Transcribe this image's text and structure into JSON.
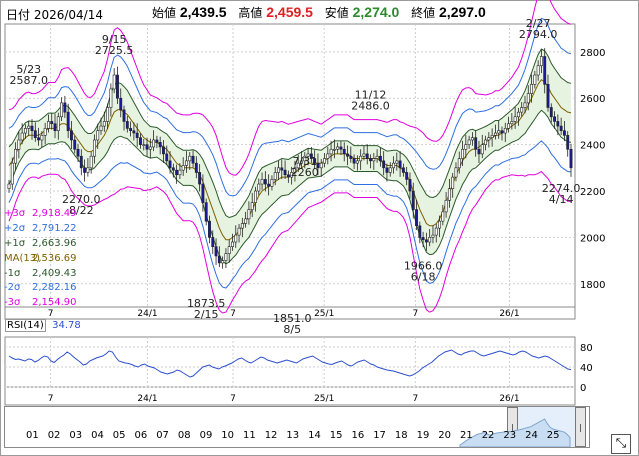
{
  "header": {
    "date": "日付 2026/04/14",
    "open_label": "始値",
    "open": "2,439.5",
    "high_label": "高値",
    "high": "2,459.5",
    "low_label": "安値",
    "low": "2,274.0",
    "close_label": "終値",
    "close": "2,297.0"
  },
  "colors": {
    "up": "#2c8a2c",
    "down": "#1a1a9a",
    "high": "#e02020",
    "plus3": "#e000e0",
    "plus2": "#2f6fe0",
    "plus1": "#2a5a2a",
    "ma": "#806000",
    "rsi": "#2d4fd0"
  },
  "legend": [
    {
      "label": "+3σ",
      "value": "2,918.49",
      "color": "#e000e0"
    },
    {
      "label": "+2σ",
      "value": "2,791.22",
      "color": "#2f6fe0"
    },
    {
      "label": "+1σ",
      "value": "2,663.96",
      "color": "#2a5a2a"
    },
    {
      "label": "MA(13)",
      "value": "2,536.69",
      "color": "#806000"
    },
    {
      "label": "-1σ",
      "value": "2,409.43",
      "color": "#2a5a2a"
    },
    {
      "label": "-2σ",
      "value": "2,282.16",
      "color": "#2f6fe0"
    },
    {
      "label": "-3σ",
      "value": "2,154.90",
      "color": "#e000e0"
    }
  ],
  "rsi_label": "RSI(14)",
  "rsi_value": "34.78",
  "nav_months": [
    "01",
    "02",
    "03",
    "04",
    "05",
    "06",
    "07",
    "08",
    "09",
    "10",
    "11",
    "12",
    "13",
    "14",
    "15",
    "16",
    "17",
    "18",
    "19",
    "20",
    "21",
    "22",
    "23",
    "24",
    "25"
  ],
  "chart_data": [
    {
      "type": "candlestick",
      "title": "",
      "y_ticks": [
        1800,
        2000,
        2200,
        2400,
        2600,
        2800
      ],
      "ylim": [
        1700,
        2920
      ],
      "x_tick_labels": [
        "7",
        "24/1",
        "7",
        "25/1",
        "7",
        "26/1"
      ],
      "annotations": [
        {
          "text": "5/23 2587.0",
          "value": 2587.0
        },
        {
          "text": "9/15 2725.5",
          "value": 2725.5
        },
        {
          "text": "2270.0 8/22",
          "value": 2270.0
        },
        {
          "text": "1873.5 2/15",
          "value": 1873.5
        },
        {
          "text": "7/31 2260",
          "value": 2260
        },
        {
          "text": "1851.0 8/5",
          "value": 1851.0
        },
        {
          "text": "11/12 2486.0",
          "value": 2486.0
        },
        {
          "text": "1966.0 6/18",
          "value": 1966.0
        },
        {
          "text": "2/27 2794.0",
          "value": 2794.0
        },
        {
          "text": "2274.0 4/14",
          "value": 2274.0
        }
      ],
      "close": [
        2230,
        2320,
        2380,
        2420,
        2450,
        2470,
        2480,
        2460,
        2430,
        2420,
        2440,
        2470,
        2500,
        2490,
        2460,
        2520,
        2580,
        2540,
        2460,
        2420,
        2380,
        2350,
        2300,
        2280,
        2300,
        2350,
        2420,
        2460,
        2480,
        2500,
        2560,
        2640,
        2700,
        2600,
        2550,
        2500,
        2470,
        2460,
        2450,
        2430,
        2400,
        2400,
        2380,
        2390,
        2420,
        2410,
        2390,
        2360,
        2330,
        2300,
        2290,
        2270,
        2290,
        2310,
        2330,
        2350,
        2320,
        2280,
        2230,
        2150,
        2070,
        2000,
        1960,
        1920,
        1890,
        1900,
        1930,
        1960,
        1980,
        2010,
        2040,
        2060,
        2080,
        2120,
        2150,
        2200,
        2230,
        2250,
        2230,
        2220,
        2250,
        2280,
        2300,
        2290,
        2270,
        2260,
        2280,
        2300,
        2320,
        2330,
        2350,
        2360,
        2340,
        2320,
        2300,
        2320,
        2340,
        2360,
        2380,
        2380,
        2390,
        2380,
        2360,
        2350,
        2340,
        2320,
        2330,
        2350,
        2360,
        2340,
        2330,
        2340,
        2350,
        2330,
        2300,
        2280,
        2300,
        2320,
        2330,
        2300,
        2280,
        2250,
        2200,
        2120,
        2050,
        2000,
        1990,
        1980,
        2000,
        2010,
        2040,
        2070,
        2110,
        2160,
        2210,
        2260,
        2300,
        2340,
        2380,
        2400,
        2420,
        2430,
        2380,
        2360,
        2400,
        2420,
        2430,
        2440,
        2450,
        2460,
        2450,
        2470,
        2490,
        2500,
        2520,
        2540,
        2560,
        2580,
        2620,
        2660,
        2700,
        2740,
        2780,
        2660,
        2560,
        2520,
        2500,
        2480,
        2460,
        2440,
        2380,
        2300
      ],
      "ma": [
        2310,
        2330,
        2360,
        2390,
        2410,
        2430,
        2440,
        2440,
        2440,
        2440,
        2450,
        2460,
        2470,
        2470,
        2470,
        2480,
        2490,
        2490,
        2480,
        2460,
        2440,
        2420,
        2400,
        2380,
        2370,
        2370,
        2380,
        2400,
        2420,
        2440,
        2470,
        2510,
        2540,
        2550,
        2550,
        2540,
        2530,
        2510,
        2490,
        2470,
        2450,
        2430,
        2420,
        2410,
        2410,
        2410,
        2400,
        2390,
        2380,
        2360,
        2340,
        2320,
        2310,
        2300,
        2300,
        2300,
        2300,
        2290,
        2270,
        2240,
        2200,
        2160,
        2120,
        2080,
        2040,
        2010,
        1990,
        1990,
        2000,
        2010,
        2030,
        2050,
        2070,
        2090,
        2120,
        2150,
        2180,
        2200,
        2210,
        2220,
        2230,
        2240,
        2250,
        2260,
        2260,
        2260,
        2270,
        2280,
        2290,
        2300,
        2310,
        2320,
        2320,
        2320,
        2320,
        2320,
        2330,
        2340,
        2350,
        2360,
        2360,
        2360,
        2360,
        2360,
        2350,
        2340,
        2340,
        2340,
        2340,
        2340,
        2340,
        2340,
        2340,
        2330,
        2320,
        2310,
        2310,
        2310,
        2310,
        2300,
        2290,
        2270,
        2240,
        2200,
        2160,
        2120,
        2090,
        2060,
        2050,
        2050,
        2060,
        2080,
        2110,
        2150,
        2190,
        2230,
        2270,
        2300,
        2330,
        2350,
        2370,
        2380,
        2380,
        2390,
        2400,
        2410,
        2420,
        2430,
        2440,
        2440,
        2450,
        2460,
        2470,
        2480,
        2490,
        2500,
        2520,
        2540,
        2570,
        2600,
        2630,
        2660,
        2680,
        2670,
        2650,
        2620,
        2600,
        2580,
        2560,
        2550,
        2540,
        2537
      ],
      "sd": [
        80,
        75,
        70,
        68,
        66,
        64,
        62,
        60,
        60,
        62,
        62,
        64,
        66,
        66,
        66,
        70,
        78,
        80,
        84,
        86,
        86,
        84,
        82,
        80,
        78,
        78,
        80,
        84,
        88,
        92,
        100,
        110,
        118,
        118,
        114,
        110,
        104,
        98,
        92,
        86,
        80,
        76,
        72,
        68,
        66,
        64,
        64,
        64,
        66,
        68,
        70,
        72,
        74,
        76,
        76,
        76,
        78,
        82,
        88,
        96,
        104,
        112,
        118,
        120,
        118,
        112,
        104,
        96,
        90,
        86,
        84,
        84,
        86,
        90,
        94,
        98,
        100,
        100,
        98,
        94,
        90,
        86,
        82,
        80,
        78,
        76,
        74,
        72,
        70,
        68,
        66,
        64,
        62,
        60,
        58,
        56,
        56,
        56,
        56,
        56,
        56,
        56,
        56,
        56,
        56,
        56,
        56,
        56,
        56,
        56,
        56,
        56,
        56,
        58,
        60,
        62,
        64,
        66,
        66,
        66,
        68,
        72,
        80,
        92,
        104,
        114,
        120,
        124,
        124,
        122,
        118,
        114,
        110,
        106,
        104,
        104,
        104,
        104,
        102,
        98,
        92,
        86,
        80,
        76,
        72,
        68,
        66,
        64,
        64,
        64,
        64,
        66,
        68,
        70,
        74,
        78,
        84,
        92,
        100,
        110,
        120,
        128,
        132,
        134,
        132,
        130,
        128,
        128,
        128,
        128,
        128,
        127.27
      ]
    },
    {
      "type": "line",
      "title": "RSI(14)",
      "ylim": [
        0,
        100
      ],
      "y_ticks": [
        0,
        40,
        80
      ],
      "x_tick_labels": [
        "7",
        "24/1",
        "7",
        "25/1",
        "7",
        "26/1"
      ],
      "values": [
        62,
        58,
        55,
        56,
        54,
        52,
        56,
        55,
        50,
        53,
        58,
        62,
        60,
        52,
        49,
        55,
        60,
        64,
        70,
        66,
        60,
        55,
        50,
        44,
        46,
        52,
        55,
        58,
        60,
        62,
        66,
        72,
        70,
        60,
        52,
        50,
        48,
        47,
        45,
        42,
        40,
        44,
        46,
        42,
        40,
        38,
        34,
        30,
        28,
        26,
        28,
        30,
        34,
        32,
        28,
        24,
        20,
        22,
        28,
        34,
        40,
        42,
        44,
        40,
        38,
        36,
        40,
        42,
        45,
        48,
        52,
        56,
        58,
        54,
        50,
        48,
        52,
        56,
        60,
        58,
        54,
        52,
        50,
        48,
        50,
        52,
        54,
        52,
        50,
        48,
        52,
        56,
        58,
        60,
        62,
        58,
        54,
        50,
        48,
        46,
        45,
        48,
        50,
        52,
        48,
        44,
        42,
        46,
        50,
        52,
        54,
        50,
        46,
        44,
        40,
        38,
        36,
        34,
        33,
        32,
        30,
        28,
        26,
        24,
        22,
        24,
        28,
        32,
        38,
        42,
        46,
        50,
        56,
        62,
        66,
        70,
        72,
        74,
        70,
        66,
        64,
        68,
        70,
        72,
        72,
        68,
        64,
        62,
        64,
        66,
        68,
        70,
        72,
        70,
        68,
        66,
        64,
        66,
        70,
        72,
        70,
        66,
        62,
        60,
        58,
        60,
        62,
        60,
        56,
        52,
        48,
        44,
        40,
        36,
        34.78
      ]
    }
  ]
}
